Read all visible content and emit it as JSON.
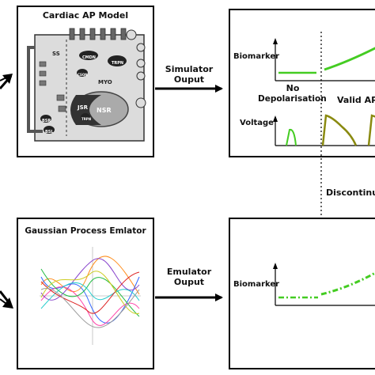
{
  "top_panel": {
    "title": "Cardiac AP Model",
    "compartments": {
      "ss": "SS",
      "myo": "MYO",
      "nsr": "NSR",
      "jsr": "JSR"
    },
    "blobs": [
      "CMDN",
      "TRPN",
      "CSQN",
      "BSR",
      "BSL",
      "TRPN"
    ],
    "arrow_label_line1": "Simulator",
    "arrow_label_line2": "Ouput"
  },
  "bottom_panel": {
    "title": "Gaussian Process Emlator",
    "arrow_label_line1": "Emulator",
    "arrow_label_line2": "Ouput"
  },
  "sim_output": {
    "biomarker_label": "Biomarker",
    "voltage_label": "Voltage",
    "no_depol_line1": "No",
    "no_depol_line2": "Depolarisation",
    "valid_ap": "Valid AP"
  },
  "emu_output": {
    "biomarker_label": "Biomarker"
  },
  "discontinuity_label": "Discontinuity",
  "colors": {
    "biomarker_green": "#44cc22",
    "voltage_green": "#44cc22",
    "voltage_olive": "#8a8a10",
    "cell_fill": "#dcdcdc",
    "sr_dark": "#333333",
    "sr_light": "#aaaaaa"
  }
}
